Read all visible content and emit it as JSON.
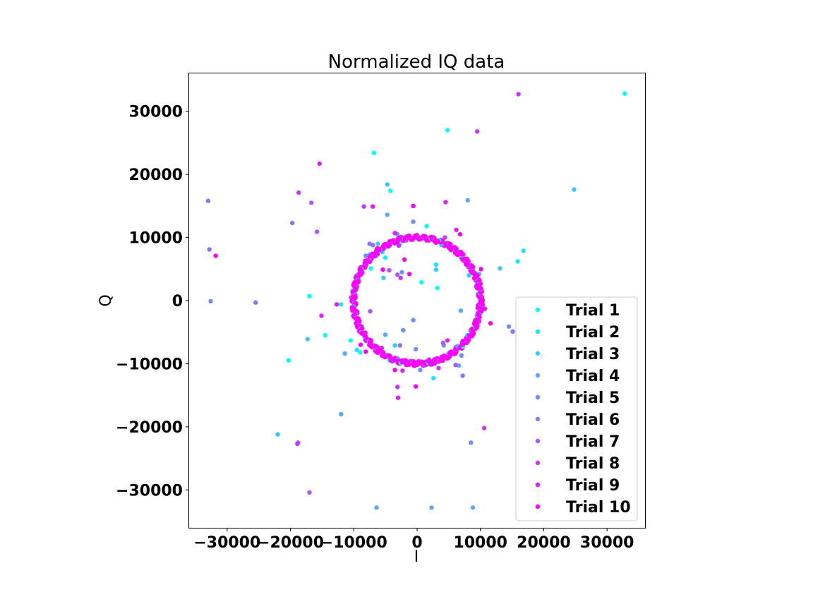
{
  "chart_data": {
    "type": "scatter",
    "title": "Normalized IQ data",
    "xlabel": "I",
    "ylabel": "Q",
    "xlim": [
      -36000,
      36000
    ],
    "ylim": [
      -36000,
      36000
    ],
    "xticks": [
      -30000,
      -20000,
      -10000,
      0,
      10000,
      20000,
      30000
    ],
    "yticks": [
      -30000,
      -20000,
      -10000,
      0,
      10000,
      20000,
      30000
    ],
    "xtick_labels": [
      "−30000",
      "−20000",
      "−10000",
      "0",
      "10000",
      "20000",
      "30000"
    ],
    "ytick_labels": [
      "−30000",
      "−20000",
      "−10000",
      "0",
      "10000",
      "20000",
      "30000"
    ],
    "grid": false,
    "legend_position": "lower right",
    "ring": {
      "center": [
        0,
        0
      ],
      "radius": 10000,
      "note": "dense cluster of points from all trials lying on a circle"
    },
    "series": [
      {
        "name": "Trial 1",
        "color": "#00ffff",
        "points": [
          [
            32800,
            32800
          ],
          [
            4800,
            27000
          ],
          [
            -6800,
            23400
          ],
          [
            -4200,
            17400
          ],
          [
            -5000,
            6800
          ],
          [
            -7300,
            5100
          ],
          [
            1500,
            11800
          ],
          [
            -17000,
            700
          ],
          [
            -10500,
            -6300
          ],
          [
            -20300,
            -9500
          ],
          [
            3200,
            2000
          ],
          [
            700,
            2900
          ],
          [
            -2700,
            8900
          ],
          [
            -14500,
            -5500
          ],
          [
            -9000,
            -8200
          ]
        ]
      },
      {
        "name": "Trial 2",
        "color": "#1ce3ff",
        "points": [
          [
            16800,
            7900
          ],
          [
            -7500,
            7300
          ],
          [
            -5500,
            7700
          ],
          [
            3000,
            5700
          ],
          [
            -12000,
            -600
          ],
          [
            2600,
            -12300
          ],
          [
            -9500,
            -7800
          ],
          [
            15900,
            6200
          ],
          [
            -4300,
            -9500
          ]
        ]
      },
      {
        "name": "Trial 3",
        "color": "#38c7ff",
        "points": [
          [
            24800,
            17600
          ],
          [
            -4700,
            18400
          ],
          [
            -6200,
            9000
          ],
          [
            3000,
            4900
          ],
          [
            -5300,
            3600
          ],
          [
            -17300,
            -6100
          ],
          [
            13100,
            5100
          ],
          [
            -22000,
            -21200
          ],
          [
            -3500,
            -7100
          ],
          [
            8200,
            4000
          ],
          [
            19700,
            -8900
          ],
          [
            10400,
            -700
          ]
        ]
      },
      {
        "name": "Trial 4",
        "color": "#55aaff",
        "points": [
          [
            8000,
            15900
          ],
          [
            -4700,
            13600
          ],
          [
            9800,
            4200
          ],
          [
            -6400,
            -32800
          ],
          [
            2300,
            -32800
          ],
          [
            8800,
            -32800
          ],
          [
            -12000,
            -18000
          ],
          [
            6900,
            -1600
          ],
          [
            -5000,
            -5400
          ],
          [
            6600,
            -10300
          ],
          [
            -11400,
            -8400
          ],
          [
            1900,
            -9300
          ]
        ]
      },
      {
        "name": "Trial 5",
        "color": "#718eff",
        "points": [
          [
            -32600,
            -100
          ],
          [
            8500,
            -22500
          ],
          [
            14500,
            -4100
          ],
          [
            -2400,
            4500
          ],
          [
            -2200,
            -4700
          ],
          [
            -600,
            -3100
          ],
          [
            -3100,
            10500
          ],
          [
            500,
            -11000
          ],
          [
            7000,
            -8700
          ],
          [
            -600,
            12500
          ],
          [
            -8100,
            7100
          ],
          [
            -200,
            -7700
          ],
          [
            4200,
            -7100
          ]
        ]
      },
      {
        "name": "Trial 6",
        "color": "#8d72ff",
        "points": [
          [
            -33000,
            15800
          ],
          [
            -19700,
            12300
          ],
          [
            -25500,
            -300
          ],
          [
            -32800,
            8100
          ],
          [
            -7500,
            9000
          ],
          [
            7200,
            -11900
          ],
          [
            15100,
            -4900
          ],
          [
            -7000,
            8800
          ],
          [
            -2700,
            -7100
          ]
        ]
      },
      {
        "name": "Trial 7",
        "color": "#aa55ff",
        "points": [
          [
            -16700,
            15500
          ],
          [
            -15800,
            10900
          ],
          [
            -4400,
            4800
          ],
          [
            -3100,
            4100
          ],
          [
            -7400,
            -1700
          ],
          [
            -18800,
            -22500
          ],
          [
            6100,
            -10200
          ],
          [
            -17000,
            -30400
          ],
          [
            -5300,
            -8600
          ],
          [
            4100,
            -6700
          ]
        ]
      },
      {
        "name": "Trial 8",
        "color": "#c738ff",
        "points": [
          [
            9500,
            26800
          ],
          [
            16000,
            32700
          ],
          [
            -8400,
            14900
          ],
          [
            -18700,
            17100
          ],
          [
            3400,
            -10700
          ],
          [
            10600,
            -20200
          ],
          [
            -3100,
            -13700
          ],
          [
            -2600,
            3600
          ],
          [
            4400,
            10000
          ],
          [
            -2900,
            8700
          ],
          [
            -18900,
            -22700
          ]
        ]
      },
      {
        "name": "Trial 9",
        "color": "#e31cff",
        "points": [
          [
            -15400,
            21700
          ],
          [
            4500,
            15600
          ],
          [
            -7000,
            14900
          ],
          [
            6200,
            11200
          ],
          [
            -12700,
            -600
          ],
          [
            -3500,
            10700
          ],
          [
            -10400,
            500
          ],
          [
            -5600,
            -7500
          ],
          [
            4800,
            -6300
          ],
          [
            -2300,
            -11100
          ],
          [
            -15100,
            -2400
          ],
          [
            -3000,
            -15400
          ]
        ]
      },
      {
        "name": "Trial 10",
        "color": "#ff00ff",
        "points": [
          [
            -31800,
            7100
          ],
          [
            -2000,
            6500
          ],
          [
            6800,
            10500
          ],
          [
            -5400,
            4900
          ],
          [
            -1200,
            4200
          ],
          [
            -600,
            15000
          ],
          [
            10100,
            5000
          ],
          [
            11600,
            -3600
          ],
          [
            -8900,
            -7000
          ],
          [
            -8100,
            -8100
          ],
          [
            -3500,
            -11000
          ],
          [
            -200,
            -13600
          ],
          [
            10700,
            -1300
          ]
        ]
      }
    ]
  }
}
